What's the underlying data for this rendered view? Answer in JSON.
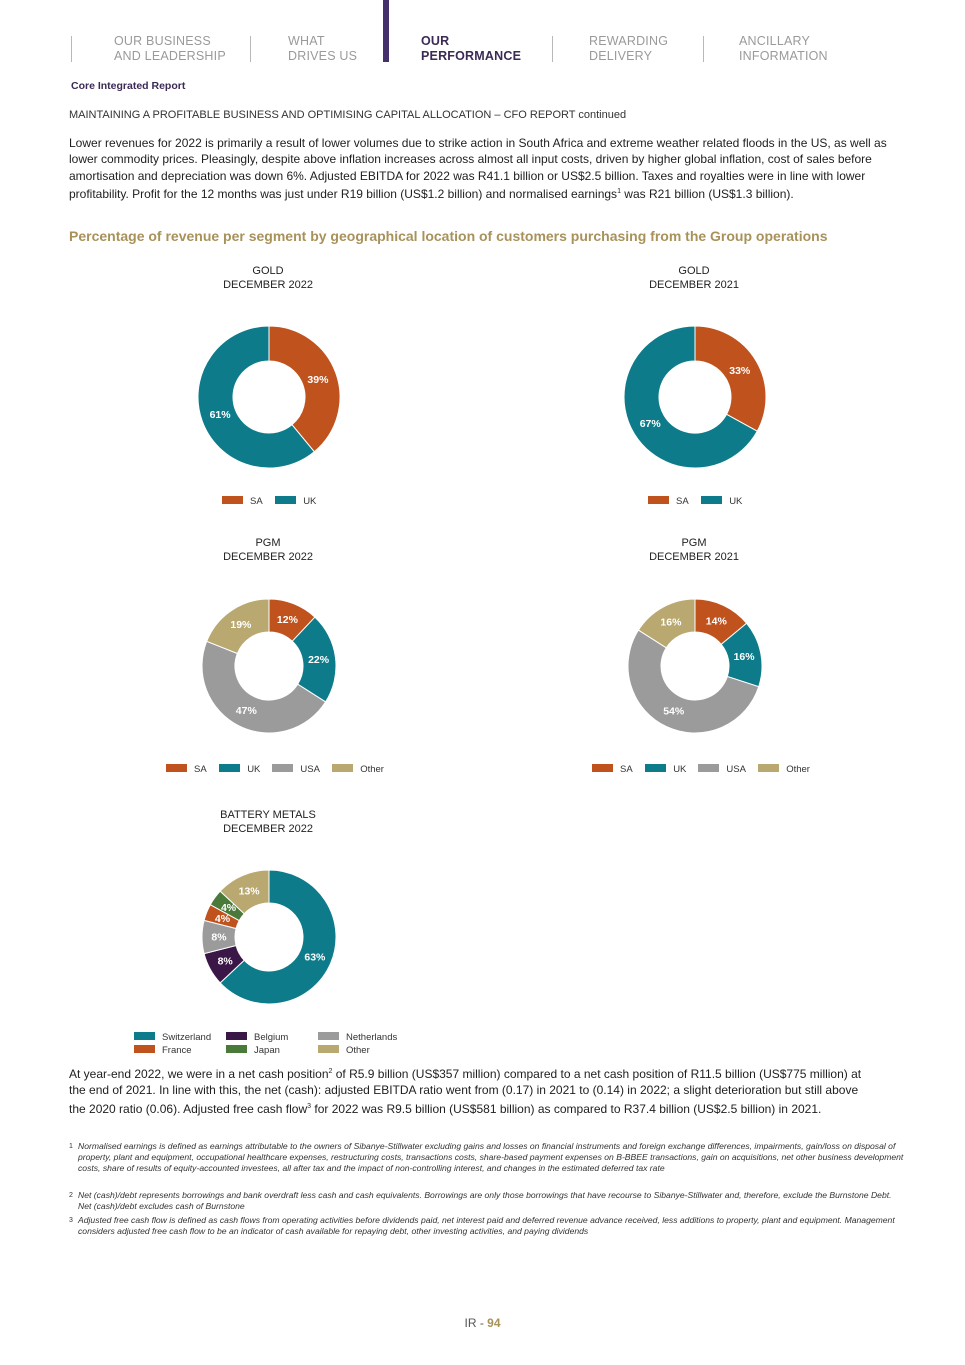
{
  "nav": [
    {
      "label": "OUR BUSINESS\nAND LEADERSHIP",
      "active": false
    },
    {
      "label": "WHAT\nDRIVES US",
      "active": false
    },
    {
      "label": "OUR\nPERFORMANCE",
      "active": true
    },
    {
      "label": "REWARDING\nDELIVERY",
      "active": false
    },
    {
      "label": "ANCILLARY\nINFORMATION",
      "active": false
    }
  ],
  "report_label": "Core Integrated Report",
  "section_subtitle": "MAINTAINING A PROFITABLE BUSINESS AND OPTIMISING CAPITAL ALLOCATION – CFO REPORT continued",
  "intro": {
    "text_before": "Lower revenues for 2022 is primarily  a result of lower volumes due to strike action in South Africa and extreme weather related floods in the US, as well as lower commodity prices. Pleasingly, despite above inflation increases across almost all input costs, driven by higher global inflation, cost of sales before amortisation and depreciation was down 6%. Adjusted EBITDA for 2022 was R41.1 billion or US$2.5 billion. Taxes and royalties were in line with lower profitability. Profit for the 12 months was just under R19 billion (US$1.2 billion) and normalised earnings",
    "sup": "1",
    "text_after": " was R21 billion (US$1.3 billion)."
  },
  "heading": "Percentage of revenue per segment by geographical location of customers purchasing from the Group operations",
  "colors": {
    "SA": "#c0521e",
    "UK": "#0d7b89",
    "USA": "#9b9b9b",
    "Other": "#b9a870",
    "Switzerland": "#0d7b89",
    "Belgium": "#3b1747",
    "Netherlands": "#9b9b9b",
    "France": "#c0521e",
    "Japan": "#4a7a3a"
  },
  "chart_data": [
    {
      "type": "pie",
      "title": "GOLD\nDECEMBER 2022",
      "categories": [
        "SA",
        "UK"
      ],
      "values": [
        39,
        61
      ],
      "labels": [
        "39%",
        "61%"
      ],
      "legend": [
        "SA",
        "UK"
      ]
    },
    {
      "type": "pie",
      "title": "GOLD\nDECEMBER 2021",
      "categories": [
        "SA",
        "UK"
      ],
      "values": [
        33,
        67
      ],
      "labels": [
        "33%",
        "67%"
      ],
      "legend": [
        "SA",
        "UK"
      ]
    },
    {
      "type": "pie",
      "title": "PGM\nDECEMBER 2022",
      "categories": [
        "SA",
        "UK",
        "USA",
        "Other"
      ],
      "values": [
        12,
        22,
        47,
        19
      ],
      "labels": [
        "12%",
        "22%",
        "47%",
        "19%"
      ],
      "legend": [
        "SA",
        "UK",
        "USA",
        "Other"
      ]
    },
    {
      "type": "pie",
      "title": "PGM\nDECEMBER 2021",
      "categories": [
        "SA",
        "UK",
        "USA",
        "Other"
      ],
      "values": [
        14,
        16,
        54,
        16
      ],
      "labels": [
        "14%",
        "16%",
        "54%",
        "16%"
      ],
      "legend": [
        "SA",
        "UK",
        "USA",
        "Other"
      ]
    },
    {
      "type": "pie",
      "title": "BATTERY METALS\nDECEMBER 2022",
      "categories": [
        "Switzerland",
        "Belgium",
        "Netherlands",
        "France",
        "Japan",
        "Other"
      ],
      "values": [
        63,
        8,
        8,
        4,
        4,
        13
      ],
      "labels": [
        "63%",
        "8%",
        "8%",
        "4%",
        "4%",
        "13%"
      ],
      "legend": [
        "Switzerland",
        "Belgium",
        "Netherlands",
        "France",
        "Japan",
        "Other"
      ]
    }
  ],
  "cash": {
    "t1": "At  year-end 2022, we were in a net cash position",
    "s1": "2",
    "t2": " of R5.9 billion (US$357 million) compared to a net cash position of R11.5 billion (US$775 million) at the end of 2021. In line with this, the net (cash): adjusted EBITDA ratio went from (0.17) in 2021 to (0.14) in 2022; a slight deterioration but still above the 2020 ratio (0.06). Adjusted free cash flow",
    "s2": "3",
    "t3": " for 2022 was R9.5 billion (US$581 billion) as compared to R37.4 billion (US$2.5 billion) in 2021."
  },
  "footnotes": [
    {
      "num": "1",
      "text": "Normalised earnings is defined as earnings attributable to the owners of Sibanye-Stillwater excluding gains and losses on financial instruments and foreign exchange differences, impairments, gain/loss on disposal of property, plant and equipment, occupational healthcare expenses, restructuring costs, transactions costs, share-based payment expenses on B-BBEE transactions, gain on acquisitions, net other business development costs, share of results of equity-accounted investees, all after tax and the impact of non-controlling interest, and changes in the estimated deferred tax rate"
    },
    {
      "num": "2",
      "text": "Net (cash)/debt represents borrowings and bank overdraft less cash and cash equivalents. Borrowings are only those borrowings that have recourse to Sibanye-Stillwater and, therefore, exclude the Burnstone Debt. Net (cash)/debt excludes cash of Burnstone"
    },
    {
      "num": "3",
      "text": "Adjusted free cash flow is defined as cash flows from operating activities before dividends paid, net interest paid and deferred revenue advance received, less additions to property, plant and equipment. Management considers adjusted free cash flow to be an indicator of cash available for repaying debt, other investing activities, and paying dividends"
    }
  ],
  "page": {
    "prefix": "IR - ",
    "number": "94"
  }
}
